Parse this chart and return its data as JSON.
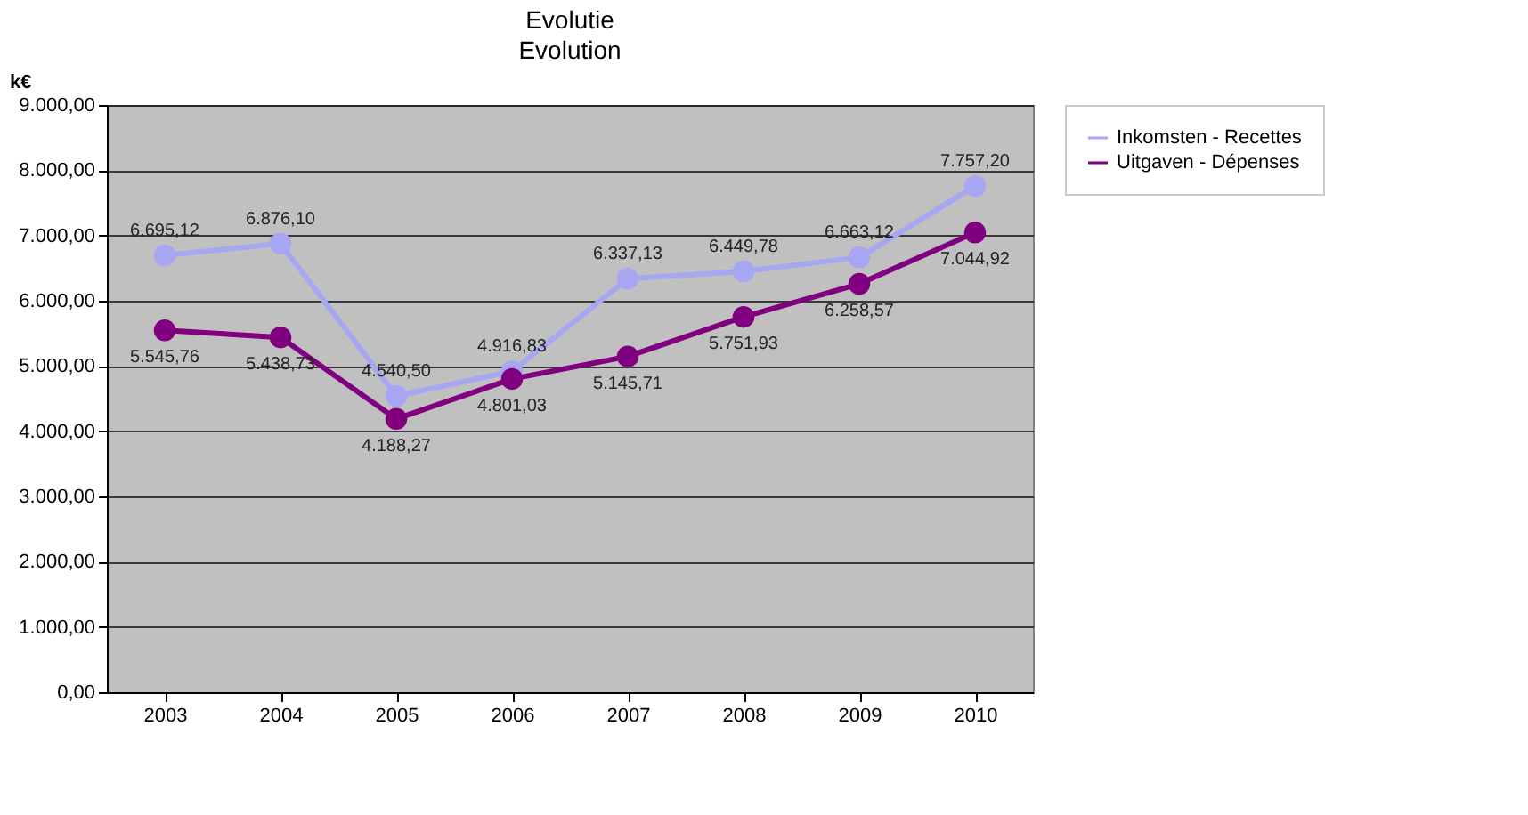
{
  "chart_data": {
    "type": "line",
    "title": "Evolutie",
    "subtitle": "Evolution",
    "ylabel": "k€",
    "categories": [
      "2003",
      "2004",
      "2005",
      "2006",
      "2007",
      "2008",
      "2009",
      "2010"
    ],
    "series": [
      {
        "name": "Inkomsten - Recettes",
        "color": "#a6a6f2",
        "values": [
          6695.12,
          6876.1,
          4540.5,
          4916.83,
          6337.13,
          6449.78,
          6663.12,
          7757.2
        ],
        "value_labels": [
          "6.695,12",
          "6.876,10",
          "4.540,50",
          "4.916,83",
          "6.337,13",
          "6.449,78",
          "6.663,12",
          "7.757,20"
        ]
      },
      {
        "name": "Uitgaven - Dépenses",
        "color": "#800080",
        "values": [
          5545.76,
          5438.73,
          4188.27,
          4801.03,
          5145.71,
          5751.93,
          6258.57,
          7044.92
        ],
        "value_labels": [
          "5.545,76",
          "5.438,73",
          "4.188,27",
          "4.801,03",
          "5.145,71",
          "5.751,93",
          "6.258,57",
          "7.044,92"
        ]
      }
    ],
    "ylim": [
      0,
      9000
    ],
    "yticks": [
      {
        "value": 0,
        "label": "0,00"
      },
      {
        "value": 1000,
        "label": "1.000,00"
      },
      {
        "value": 2000,
        "label": "2.000,00"
      },
      {
        "value": 3000,
        "label": "3.000,00"
      },
      {
        "value": 4000,
        "label": "4.000,00"
      },
      {
        "value": 5000,
        "label": "5.000,00"
      },
      {
        "value": 6000,
        "label": "6.000,00"
      },
      {
        "value": 7000,
        "label": "7.000,00"
      },
      {
        "value": 8000,
        "label": "8.000,00"
      },
      {
        "value": 9000,
        "label": "9.000,00"
      }
    ],
    "grid": "y",
    "legend": "right",
    "marker": "circle",
    "line_style": "solid"
  }
}
